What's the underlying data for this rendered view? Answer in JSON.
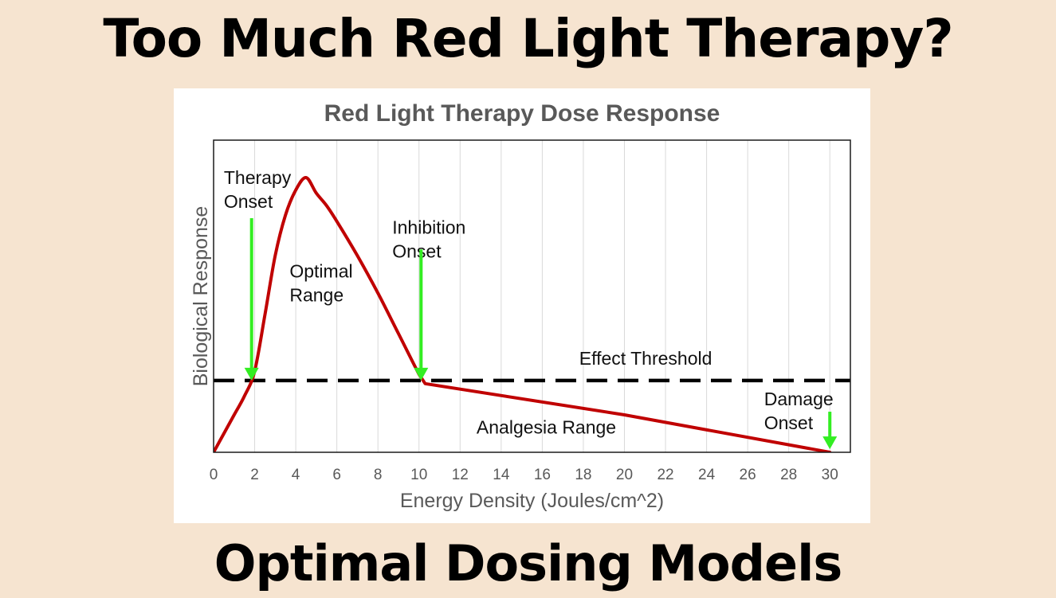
{
  "slide": {
    "title": "Too Much Red Light Therapy?",
    "subtitle": "Optimal Dosing Models",
    "background_color": "#f6e4d0"
  },
  "chart_data": {
    "type": "line",
    "title": "Red Light Therapy Dose Response",
    "xlabel": "Energy Density (Joules/cm^2)",
    "ylabel": "Biological Response",
    "xlim": [
      0,
      31
    ],
    "ylim": [
      0,
      100
    ],
    "x_ticks": [
      "0",
      "2",
      "4",
      "6",
      "8",
      "10",
      "12",
      "14",
      "16",
      "18",
      "20",
      "22",
      "24",
      "26",
      "28",
      "30"
    ],
    "y_ticks_visible": false,
    "grid": "vertical",
    "series": [
      {
        "color": "#c00000",
        "x": [
          0,
          0.5,
          1,
          1.5,
          2,
          2.5,
          3,
          3.5,
          4,
          4.5,
          5,
          5.5,
          6,
          7,
          8,
          9,
          10,
          10.3,
          20,
          30
        ],
        "y": [
          0,
          6,
          12,
          18,
          26,
          44,
          63,
          76,
          84,
          88,
          83,
          79,
          74,
          63,
          51,
          38,
          25,
          22,
          12,
          0
        ]
      }
    ],
    "threshold": {
      "label": "Effect Threshold",
      "y": 23,
      "x_start": 0,
      "x_end": 31,
      "style": "dashed",
      "color": "#000000"
    },
    "annotations": [
      {
        "lines": [
          "Therapy",
          "Onset"
        ],
        "text_x": 0.5,
        "text_y": 86,
        "arrow": {
          "x": 1.85,
          "y_from": 75,
          "y_to": 23
        },
        "arrow_color": "#33ee22"
      },
      {
        "lines": [
          "Optimal",
          "Range"
        ],
        "text_x": 3.7,
        "text_y": 56,
        "arrow": null
      },
      {
        "lines": [
          "Inhibition",
          "Onset"
        ],
        "text_x": 8.7,
        "text_y": 70,
        "arrow": {
          "x": 10.1,
          "y_from": 65,
          "y_to": 23
        },
        "arrow_color": "#33ee22"
      },
      {
        "lines": [
          "Analgesia Range"
        ],
        "text_x": 12.8,
        "text_y": 6,
        "arrow": null
      },
      {
        "lines": [
          "Damage",
          "Onset"
        ],
        "text_x": 26.8,
        "text_y": 15,
        "arrow": {
          "x": 30,
          "y_from": 13,
          "y_to": 1
        },
        "arrow_color": "#33ee22"
      }
    ]
  }
}
